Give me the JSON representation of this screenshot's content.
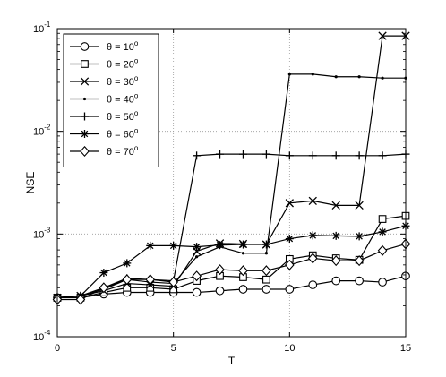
{
  "chart_data": {
    "type": "line",
    "xlabel": "T",
    "ylabel": "NSE",
    "xlim": [
      0,
      15
    ],
    "ylim": [
      0.0001,
      0.1
    ],
    "yscale": "log",
    "grid": true,
    "legend_placement": "top-left",
    "x_ticks": [
      "0",
      "5",
      "10",
      "15"
    ],
    "y_ticks": [
      {
        "base": "10",
        "exp": "-4"
      },
      {
        "base": "10",
        "exp": "-3"
      },
      {
        "base": "10",
        "exp": "-2"
      },
      {
        "base": "10",
        "exp": "-1"
      }
    ],
    "x": [
      0,
      1,
      2,
      3,
      4,
      5,
      6,
      7,
      8,
      9,
      10,
      11,
      12,
      13,
      14,
      15
    ],
    "series": [
      {
        "name": "θ = 10°",
        "label_main": "θ = 10",
        "label_sup": "o",
        "marker": "circle",
        "values": [
          0.00024,
          0.00024,
          0.00026,
          0.00027,
          0.00027,
          0.00027,
          0.00027,
          0.00028,
          0.00029,
          0.00029,
          0.00029,
          0.00032,
          0.00035,
          0.00035,
          0.00034,
          0.00039
        ]
      },
      {
        "name": "θ = 20°",
        "label_main": "θ = 20",
        "label_sup": "o",
        "marker": "square",
        "values": [
          0.00024,
          0.00024,
          0.00027,
          0.0003,
          0.0003,
          0.00029,
          0.00035,
          0.00039,
          0.00038,
          0.00036,
          0.00057,
          0.00062,
          0.00058,
          0.00056,
          0.0014,
          0.0015
        ]
      },
      {
        "name": "θ = 30°",
        "label_main": "θ = 30",
        "label_sup": "o",
        "marker": "x",
        "values": [
          0.00024,
          0.00025,
          0.00028,
          0.00033,
          0.00032,
          0.00031,
          0.00068,
          0.00081,
          0.0008,
          0.00079,
          0.002,
          0.0021,
          0.0019,
          0.0019,
          0.085,
          0.085
        ]
      },
      {
        "name": "θ = 40°",
        "label_main": "θ = 40",
        "label_sup": "o",
        "marker": "dot",
        "values": [
          0.00024,
          0.00025,
          0.00029,
          0.00036,
          0.00034,
          0.00033,
          0.0006,
          0.00075,
          0.00065,
          0.00065,
          0.036,
          0.036,
          0.034,
          0.034,
          0.033,
          0.033
        ]
      },
      {
        "name": "θ = 50°",
        "label_main": "θ = 50",
        "label_sup": "o",
        "marker": "plus",
        "values": [
          0.00024,
          0.00025,
          0.0003,
          0.00037,
          0.00036,
          0.00035,
          0.0058,
          0.006,
          0.006,
          0.006,
          0.0058,
          0.0058,
          0.0058,
          0.0058,
          0.0058,
          0.006
        ]
      },
      {
        "name": "θ = 60°",
        "label_main": "θ = 60",
        "label_sup": "o",
        "marker": "star",
        "values": [
          0.00024,
          0.00025,
          0.00042,
          0.00052,
          0.00077,
          0.00077,
          0.00075,
          0.00078,
          0.00079,
          0.00079,
          0.0009,
          0.00097,
          0.00096,
          0.00095,
          0.00105,
          0.0012
        ]
      },
      {
        "name": "θ = 70°",
        "label_main": "θ = 70",
        "label_sup": "o",
        "marker": "diamond",
        "values": [
          0.00023,
          0.00023,
          0.0003,
          0.00036,
          0.00036,
          0.00034,
          0.00039,
          0.00045,
          0.00044,
          0.00044,
          0.0005,
          0.00058,
          0.00055,
          0.00055,
          0.00069,
          0.0008
        ]
      }
    ]
  }
}
